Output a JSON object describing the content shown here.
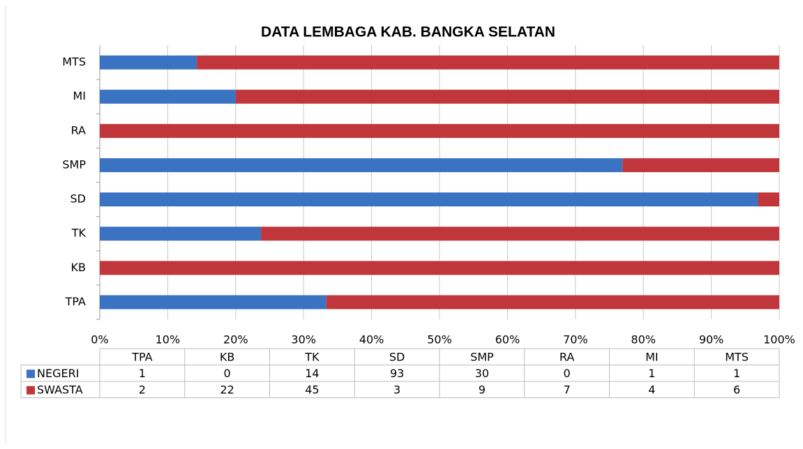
{
  "chart_data": {
    "type": "bar100h",
    "title": "DATA LEMBAGA KAB. BANGKA SELATAN",
    "categories": [
      "TPA",
      "KB",
      "TK",
      "SD",
      "SMP",
      "RA",
      "MI",
      "MTS"
    ],
    "series": [
      {
        "name": "NEGERI",
        "color": "#3a73c2",
        "values": [
          1,
          0,
          14,
          93,
          30,
          0,
          1,
          1
        ]
      },
      {
        "name": "SWASTA",
        "color": "#c1363a",
        "values": [
          2,
          22,
          45,
          3,
          9,
          7,
          4,
          6
        ]
      }
    ],
    "xlim": [
      0,
      100
    ],
    "xticks": [
      {
        "value": 0,
        "label": "0%"
      },
      {
        "value": 10,
        "label": "10%"
      },
      {
        "value": 20,
        "label": "20%"
      },
      {
        "value": 30,
        "label": "30%"
      },
      {
        "value": 40,
        "label": "40%"
      },
      {
        "value": 50,
        "label": "50%"
      },
      {
        "value": 60,
        "label": "60%"
      },
      {
        "value": 70,
        "label": "70%"
      },
      {
        "value": 80,
        "label": "80%"
      },
      {
        "value": 90,
        "label": "90%"
      },
      {
        "value": 100,
        "label": "100%"
      }
    ],
    "grid": true
  }
}
